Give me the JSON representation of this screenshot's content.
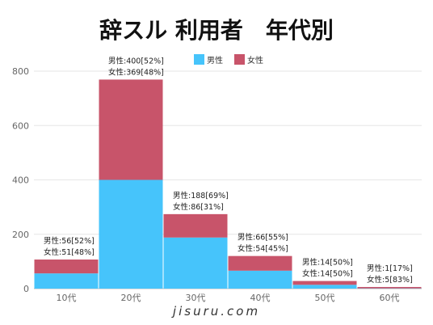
{
  "chart_data": {
    "type": "bar",
    "stacked": true,
    "title": "辞スル 利用者　年代別",
    "categories": [
      "10代",
      "20代",
      "30代",
      "40代",
      "50代",
      "60代"
    ],
    "series": [
      {
        "name": "男性",
        "color": "#46c4fb",
        "values": [
          56,
          400,
          188,
          66,
          14,
          1
        ]
      },
      {
        "name": "女性",
        "color": "#c8546a",
        "values": [
          51,
          369,
          86,
          54,
          14,
          5
        ]
      }
    ],
    "bar_labels": [
      [
        "男性:56[52%]",
        "女性:51[48%]"
      ],
      [
        "男性:400[52%]",
        "女性:369[48%]"
      ],
      [
        "男性:188[69%]",
        "女性:86[31%]"
      ],
      [
        "男性:66[55%]",
        "女性:54[45%]"
      ],
      [
        "男性:14[50%]",
        "女性:14[50%]"
      ],
      [
        "男性:1[17%]",
        "女性:5[83%]"
      ]
    ],
    "yticks": [
      0,
      200,
      400,
      600,
      800
    ],
    "ylim": [
      0,
      800
    ],
    "grid": true,
    "legend": "top",
    "watermark": "jisuru.com"
  }
}
